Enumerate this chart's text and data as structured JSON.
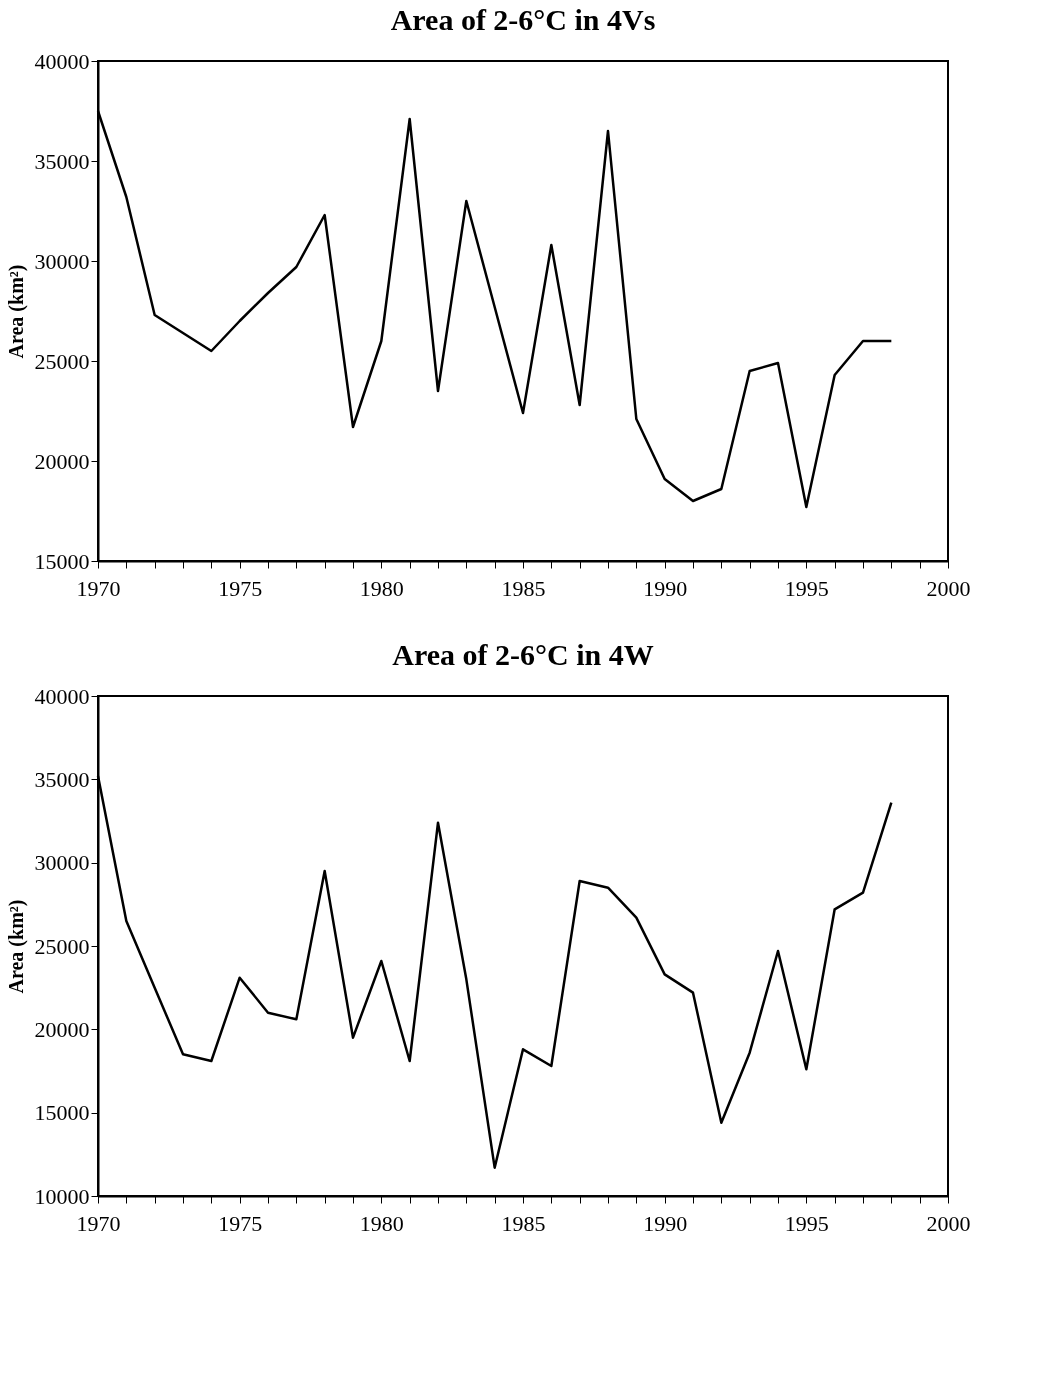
{
  "chart_data": [
    {
      "type": "line",
      "title": "Area of 2-6°C in 4Vs",
      "ylabel": "Area (km²)",
      "x": [
        1970,
        1971,
        1972,
        1973,
        1974,
        1975,
        1976,
        1977,
        1978,
        1979,
        1980,
        1981,
        1982,
        1983,
        1984,
        1985,
        1986,
        1987,
        1988,
        1989,
        1990,
        1991,
        1992,
        1993,
        1994,
        1995,
        1996,
        1997,
        1998
      ],
      "series": [
        {
          "color": "#000000",
          "values": [
            37500,
            33200,
            27300,
            26400,
            25500,
            27000,
            28400,
            29700,
            32300,
            21700,
            26000,
            37100,
            23500,
            33000,
            27700,
            22400,
            30800,
            22800,
            36500,
            22100,
            19100,
            18000,
            18600,
            24500,
            24900,
            17700,
            24300,
            26000,
            26000
          ]
        }
      ],
      "xlim": [
        1970,
        2000
      ],
      "xticks": [
        1970,
        {
          "value": 1971,
          "label": null
        },
        {
          "value": 1972,
          "label": null
        },
        {
          "value": 1973,
          "label": null
        },
        {
          "value": 1974,
          "label": null
        },
        1975,
        {
          "value": 1976,
          "label": null
        },
        {
          "value": 1977,
          "label": null
        },
        {
          "value": 1978,
          "label": null
        },
        {
          "value": 1979,
          "label": null
        },
        1980,
        {
          "value": 1981,
          "label": null
        },
        {
          "value": 1982,
          "label": null
        },
        {
          "value": 1983,
          "label": null
        },
        {
          "value": 1984,
          "label": null
        },
        1985,
        {
          "value": 1986,
          "label": null
        },
        {
          "value": 1987,
          "label": null
        },
        {
          "value": 1988,
          "label": null
        },
        {
          "value": 1989,
          "label": null
        },
        1990,
        {
          "value": 1991,
          "label": null
        },
        {
          "value": 1992,
          "label": null
        },
        {
          "value": 1993,
          "label": null
        },
        {
          "value": 1994,
          "label": null
        },
        1995,
        {
          "value": 1996,
          "label": null
        },
        {
          "value": 1997,
          "label": null
        },
        {
          "value": 1998,
          "label": null
        },
        {
          "value": 1999,
          "label": null
        },
        2000
      ],
      "ylim": [
        15000,
        40000
      ],
      "yticks": [
        15000,
        20000,
        25000,
        30000,
        35000,
        40000
      ],
      "grid": false,
      "marker": "none",
      "line_style": "solid"
    },
    {
      "type": "line",
      "title": "Area of 2-6°C in 4W",
      "ylabel": "Area (km²)",
      "x": [
        1970,
        1971,
        1972,
        1973,
        1974,
        1975,
        1976,
        1977,
        1978,
        1979,
        1980,
        1981,
        1982,
        1983,
        1984,
        1985,
        1986,
        1987,
        1988,
        1989,
        1990,
        1991,
        1992,
        1993,
        1994,
        1995,
        1996,
        1997,
        1998
      ],
      "series": [
        {
          "color": "#000000",
          "values": [
            35200,
            26500,
            22500,
            18500,
            18100,
            23100,
            21000,
            20600,
            29500,
            19500,
            24100,
            18100,
            32400,
            23000,
            11700,
            18800,
            17800,
            28900,
            28500,
            26700,
            23300,
            22200,
            14400,
            18600,
            24700,
            17600,
            27200,
            28200,
            33600
          ]
        }
      ],
      "xlim": [
        1970,
        2000
      ],
      "xticks": [
        1970,
        {
          "value": 1971,
          "label": null
        },
        {
          "value": 1972,
          "label": null
        },
        {
          "value": 1973,
          "label": null
        },
        {
          "value": 1974,
          "label": null
        },
        1975,
        {
          "value": 1976,
          "label": null
        },
        {
          "value": 1977,
          "label": null
        },
        {
          "value": 1978,
          "label": null
        },
        {
          "value": 1979,
          "label": null
        },
        1980,
        {
          "value": 1981,
          "label": null
        },
        {
          "value": 1982,
          "label": null
        },
        {
          "value": 1983,
          "label": null
        },
        {
          "value": 1984,
          "label": null
        },
        1985,
        {
          "value": 1986,
          "label": null
        },
        {
          "value": 1987,
          "label": null
        },
        {
          "value": 1988,
          "label": null
        },
        {
          "value": 1989,
          "label": null
        },
        1990,
        {
          "value": 1991,
          "label": null
        },
        {
          "value": 1992,
          "label": null
        },
        {
          "value": 1993,
          "label": null
        },
        {
          "value": 1994,
          "label": null
        },
        1995,
        {
          "value": 1996,
          "label": null
        },
        {
          "value": 1997,
          "label": null
        },
        {
          "value": 1998,
          "label": null
        },
        {
          "value": 1999,
          "label": null
        },
        2000
      ],
      "ylim": [
        10000,
        40000
      ],
      "yticks": [
        10000,
        15000,
        20000,
        25000,
        30000,
        35000,
        40000
      ],
      "grid": false,
      "marker": "none",
      "line_style": "solid"
    }
  ]
}
